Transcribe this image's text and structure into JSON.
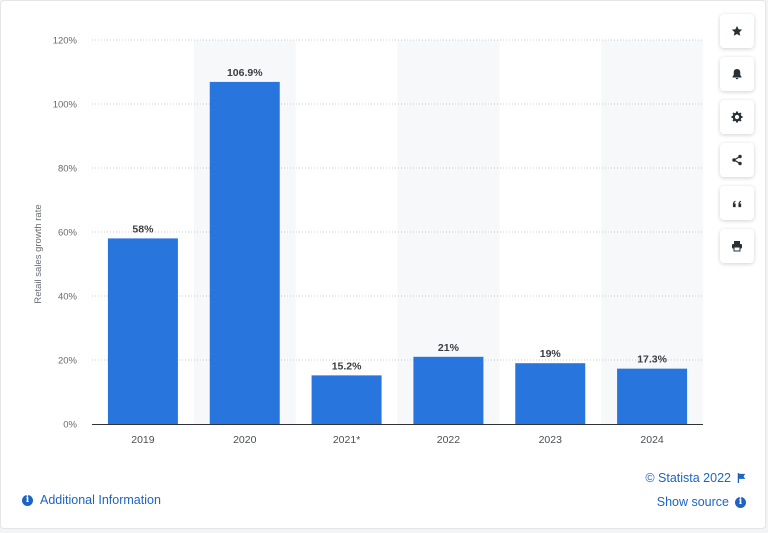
{
  "chart_data": {
    "type": "bar",
    "categories": [
      "2019",
      "2020",
      "2021*",
      "2022",
      "2023",
      "2024"
    ],
    "values": [
      58,
      106.9,
      15.2,
      21,
      19,
      17.3
    ],
    "value_labels": [
      "58%",
      "106.9%",
      "15.2%",
      "21%",
      "19%",
      "17.3%"
    ],
    "ylabel": "Retail sales growth rate",
    "ylim": [
      0,
      120
    ],
    "yticks": [
      0,
      20,
      40,
      60,
      80,
      100,
      120
    ],
    "ytick_labels": [
      "0%",
      "20%",
      "40%",
      "60%",
      "80%",
      "100%",
      "120%"
    ],
    "grid": true,
    "bar_color": "#2876dd",
    "shaded_column_color": "#f6f8fa"
  },
  "toolbar": {
    "buttons": [
      "star-icon",
      "bell-icon",
      "gear-icon",
      "share-icon",
      "quote-icon",
      "print-icon"
    ]
  },
  "footer": {
    "additional_info": "Additional Information",
    "copyright": "© Statista 2022",
    "show_source": "Show source"
  },
  "colors": {
    "accent": "#1d63c4",
    "bar": "#2876dd"
  }
}
